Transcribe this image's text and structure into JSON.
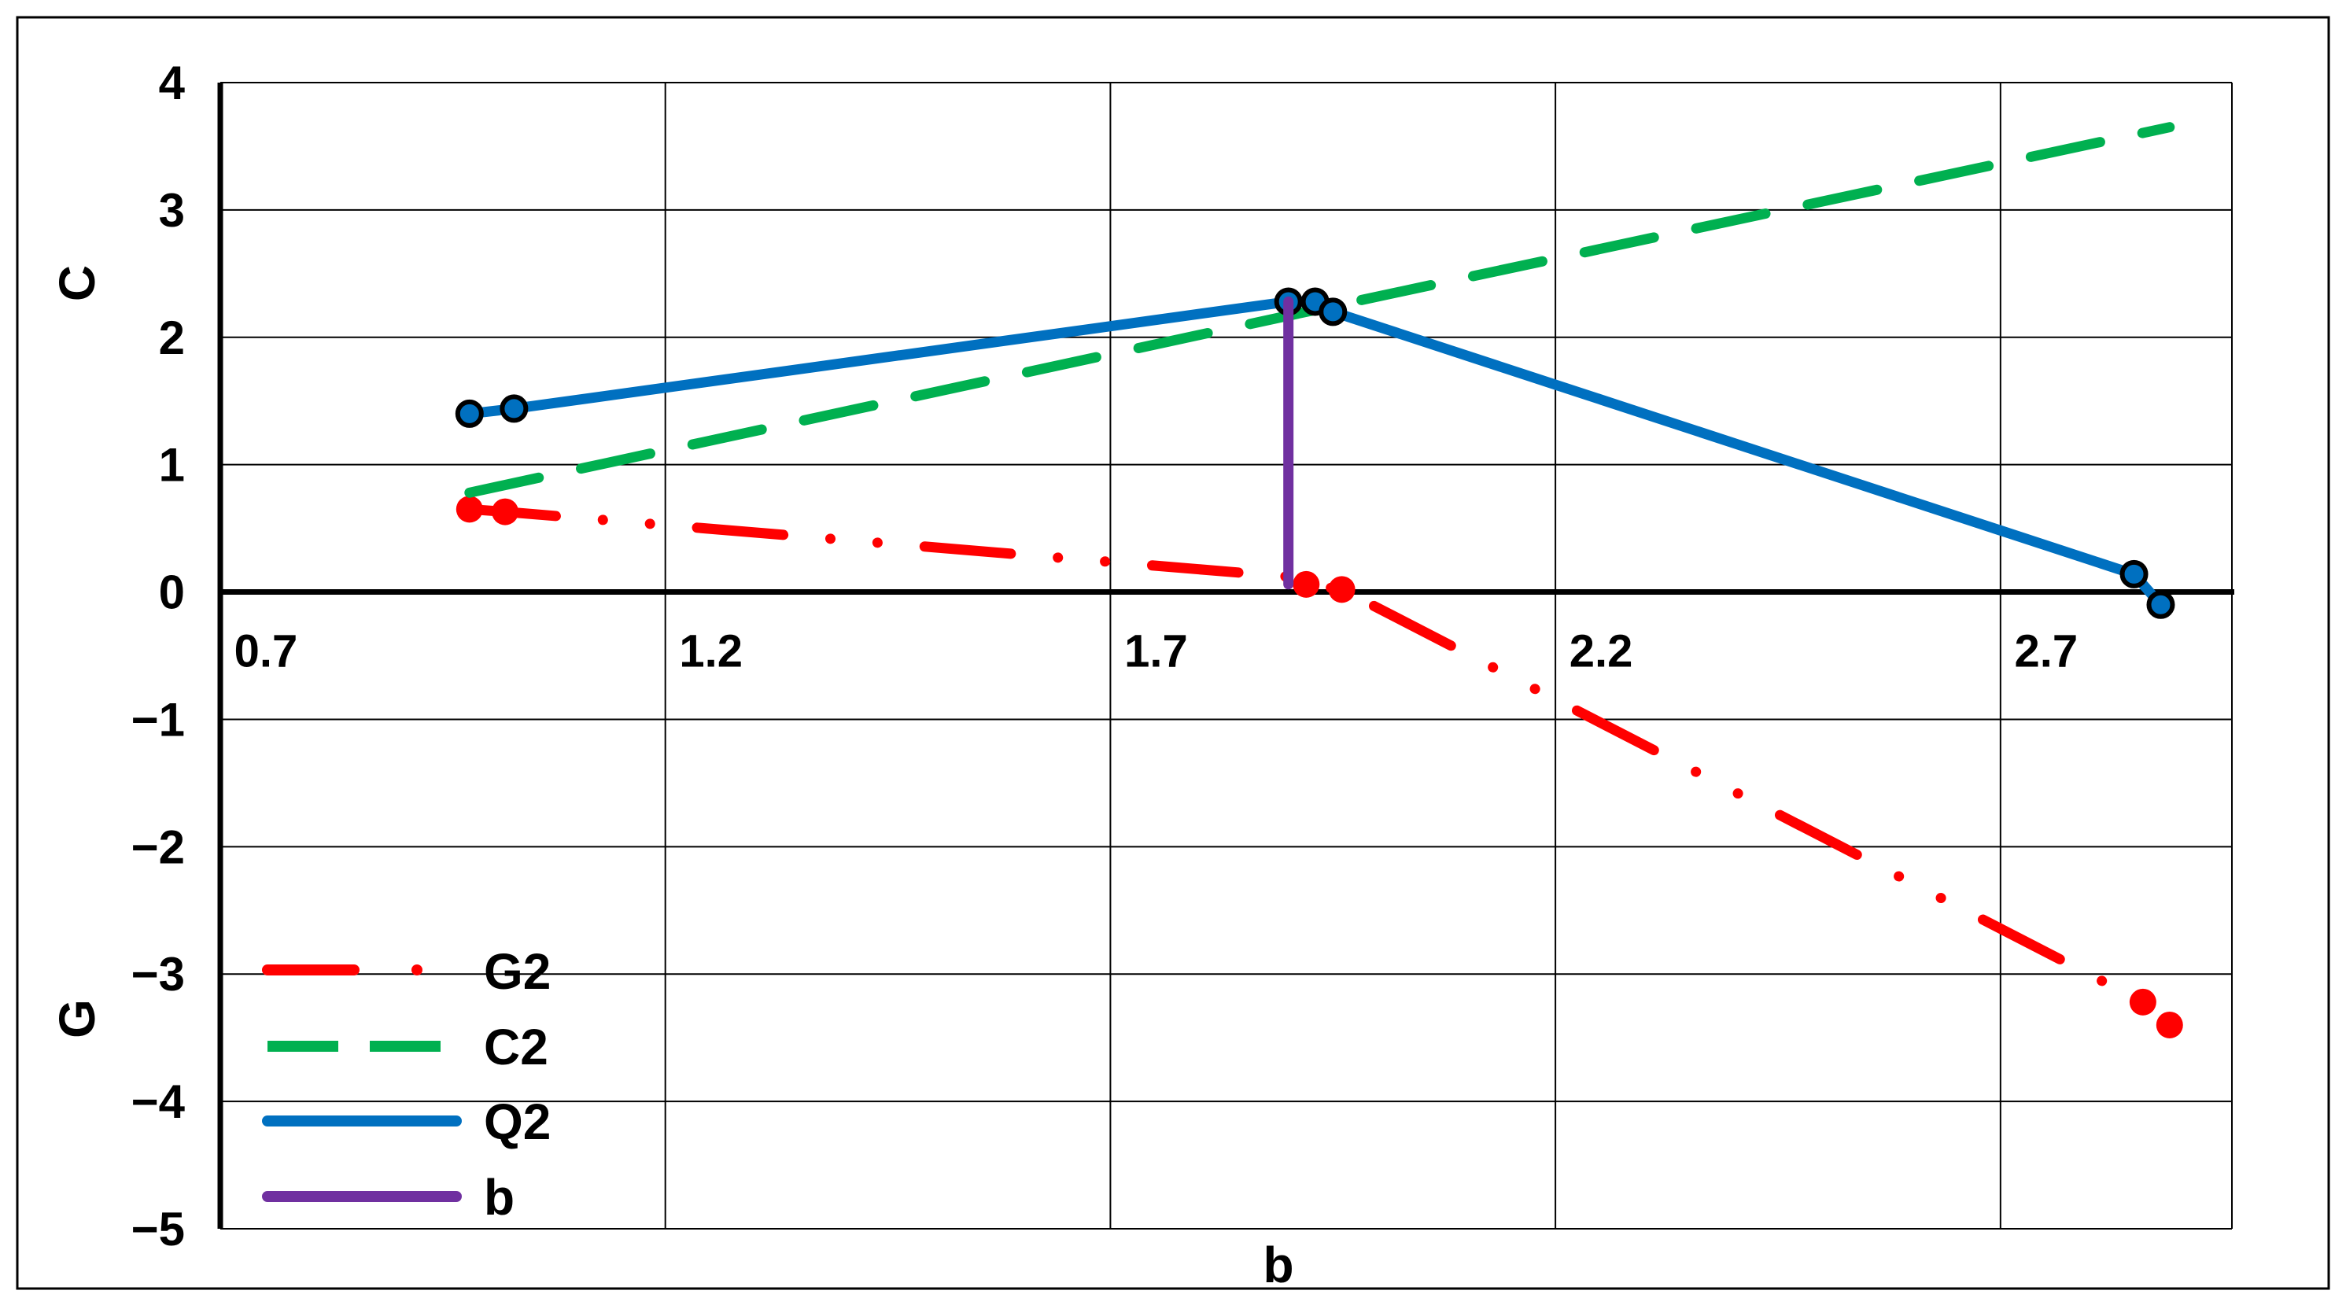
{
  "chart_data": {
    "type": "line",
    "xlabel": "b",
    "ylabel_top": "C",
    "ylabel_bottom": "G",
    "xlim": [
      0.7,
      2.96
    ],
    "ylim": [
      -5,
      4
    ],
    "x_ticks": [
      0.7,
      1.2,
      1.7,
      2.2,
      2.7
    ],
    "x_tick_labels": [
      "0.7",
      "1.2",
      "1.7",
      "2.2",
      "2.7"
    ],
    "y_ticks": [
      4,
      3,
      2,
      1,
      0,
      -1,
      -2,
      -3,
      -4,
      -5
    ],
    "y_tick_labels": [
      "4",
      "3",
      "2",
      "1",
      "0",
      "−1",
      "−2",
      "−3",
      "−4",
      "−5"
    ],
    "grid": true,
    "legend_position": "bottom-left",
    "series": [
      {
        "name": "G2",
        "color": "#FF0000",
        "style": "dash-dot-dot",
        "x": [
          0.98,
          1.02,
          1.9,
          1.92,
          1.96,
          2.86,
          2.89
        ],
        "y": [
          0.65,
          0.63,
          0.12,
          0.06,
          0.02,
          -3.22,
          -3.4
        ],
        "markers": [
          {
            "x": 0.98,
            "y": 0.65
          },
          {
            "x": 1.02,
            "y": 0.63
          },
          {
            "x": 1.92,
            "y": 0.06
          },
          {
            "x": 1.96,
            "y": 0.02
          },
          {
            "x": 2.86,
            "y": -3.22
          },
          {
            "x": 2.89,
            "y": -3.4
          }
        ]
      },
      {
        "name": "C2",
        "color": "#00B050",
        "style": "long-dash",
        "x": [
          0.98,
          1.92,
          2.89
        ],
        "y": [
          0.78,
          2.2,
          3.65
        ],
        "markers": []
      },
      {
        "name": "Q2",
        "color": "#0070C0",
        "style": "solid",
        "x": [
          0.98,
          1.03,
          1.9,
          1.93,
          1.95,
          2.85,
          2.88
        ],
        "y": [
          1.4,
          1.44,
          2.28,
          2.28,
          2.2,
          0.14,
          -0.1
        ],
        "markers": [
          {
            "x": 0.98,
            "y": 1.4
          },
          {
            "x": 1.03,
            "y": 1.44
          },
          {
            "x": 1.9,
            "y": 2.28
          },
          {
            "x": 1.93,
            "y": 2.28
          },
          {
            "x": 1.95,
            "y": 2.2
          },
          {
            "x": 2.85,
            "y": 0.14
          },
          {
            "x": 2.88,
            "y": -0.1
          }
        ]
      },
      {
        "name": "b",
        "color": "#7030A0",
        "style": "solid",
        "x": [
          1.9,
          1.9
        ],
        "y": [
          2.28,
          0.06
        ],
        "markers": []
      }
    ]
  }
}
